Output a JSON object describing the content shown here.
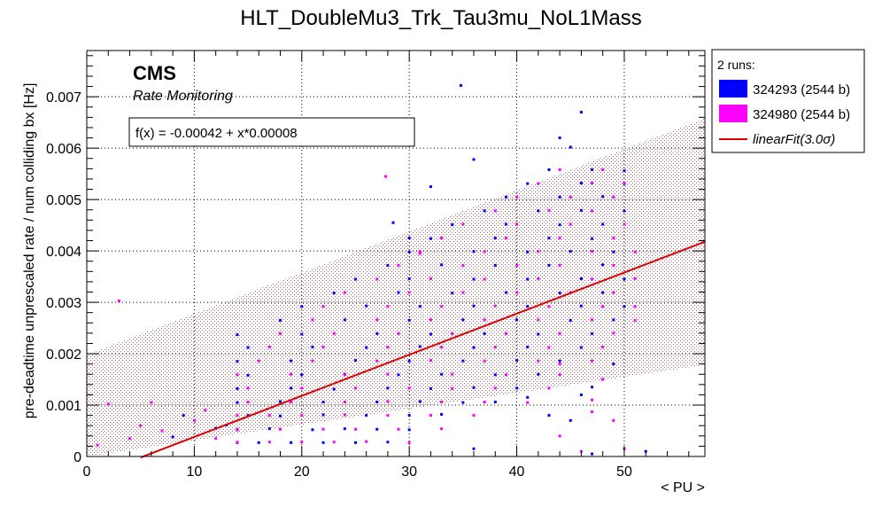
{
  "chart_data": {
    "type": "scatter",
    "title": "HLT_DoubleMu3_Trk_Tau3mu_NoL1Mass",
    "xlabel": "< PU >",
    "ylabel": "pre-deadtime unprescaled rate / num colliding bx [Hz]",
    "xlim": [
      0,
      57.5
    ],
    "ylim": [
      0,
      0.0079
    ],
    "xticks": [
      "0",
      "10",
      "20",
      "30",
      "40",
      "50"
    ],
    "yticks": [
      "0",
      "0.001",
      "0.002",
      "0.003",
      "0.004",
      "0.005",
      "0.006",
      "0.007"
    ],
    "grid": true,
    "brand": "CMS",
    "subtitle": "Rate Monitoring",
    "fit_label": "f(x) = -0.00042 + x*0.00008",
    "fit": {
      "intercept": -0.00042,
      "slope": 8e-05,
      "x_range": [
        5,
        57.5
      ],
      "band_halfwidth": 0.0024,
      "color": "#e00000"
    },
    "legend": {
      "header": "2 runs:",
      "position": "right",
      "entries": [
        {
          "label": "324293 (2544 b)",
          "color": "#0000ff"
        },
        {
          "label": "324980 (2544 b)",
          "color": "#ff00ff"
        },
        {
          "label": "linearFit(3.0σ)",
          "color": "#e00000"
        }
      ]
    },
    "series": [
      {
        "name": "324293 (2544 b)",
        "color": "#0000ff",
        "points": [
          [
            14,
            0.00027
          ],
          [
            16,
            0.00027
          ],
          [
            19,
            0.00027
          ],
          [
            22,
            0.00027
          ],
          [
            25,
            0.00027
          ],
          [
            28,
            0.00028
          ],
          [
            14,
            0.00052
          ],
          [
            17,
            0.00054
          ],
          [
            21,
            0.00052
          ],
          [
            24,
            0.00054
          ],
          [
            27,
            0.00053
          ],
          [
            30,
            0.00052
          ],
          [
            15,
            0.0008
          ],
          [
            18,
            0.00079
          ],
          [
            22,
            0.00081
          ],
          [
            26,
            0.0008
          ],
          [
            30,
            0.0008
          ],
          [
            33,
            0.00082
          ],
          [
            14,
            0.00105
          ],
          [
            18,
            0.00107
          ],
          [
            22,
            0.00106
          ],
          [
            27,
            0.00106
          ],
          [
            31,
            0.00107
          ],
          [
            35,
            0.00105
          ],
          [
            38,
            0.00106
          ],
          [
            14,
            0.00132
          ],
          [
            19,
            0.00133
          ],
          [
            23,
            0.00131
          ],
          [
            28,
            0.00133
          ],
          [
            32,
            0.00132
          ],
          [
            36,
            0.00134
          ],
          [
            40,
            0.00133
          ],
          [
            15,
            0.00158
          ],
          [
            20,
            0.00159
          ],
          [
            24,
            0.0016
          ],
          [
            29,
            0.00159
          ],
          [
            33,
            0.0016
          ],
          [
            38,
            0.00159
          ],
          [
            42,
            0.0016
          ],
          [
            14,
            0.00185
          ],
          [
            19,
            0.00186
          ],
          [
            25,
            0.00187
          ],
          [
            30,
            0.00186
          ],
          [
            35,
            0.00186
          ],
          [
            40,
            0.00187
          ],
          [
            44,
            0.00186
          ],
          [
            15,
            0.00212
          ],
          [
            21,
            0.00213
          ],
          [
            26,
            0.00212
          ],
          [
            31,
            0.00214
          ],
          [
            36,
            0.00212
          ],
          [
            41,
            0.00213
          ],
          [
            46,
            0.00212
          ],
          [
            14,
            0.00237
          ],
          [
            20,
            0.00238
          ],
          [
            27,
            0.00239
          ],
          [
            32,
            0.00238
          ],
          [
            37,
            0.00239
          ],
          [
            42,
            0.00238
          ],
          [
            47,
            0.00239
          ],
          [
            18,
            0.00265
          ],
          [
            24,
            0.00266
          ],
          [
            30,
            0.00265
          ],
          [
            35,
            0.00266
          ],
          [
            40,
            0.00266
          ],
          [
            45,
            0.00265
          ],
          [
            49,
            0.00266
          ],
          [
            20,
            0.00292
          ],
          [
            26,
            0.00293
          ],
          [
            31,
            0.00292
          ],
          [
            36,
            0.00293
          ],
          [
            41,
            0.00292
          ],
          [
            46,
            0.00293
          ],
          [
            50,
            0.00292
          ],
          [
            23,
            0.00318
          ],
          [
            29,
            0.00319
          ],
          [
            34,
            0.00318
          ],
          [
            39,
            0.00319
          ],
          [
            44,
            0.00318
          ],
          [
            48,
            0.00319
          ],
          [
            25,
            0.00345
          ],
          [
            30,
            0.00346
          ],
          [
            36,
            0.00345
          ],
          [
            41,
            0.00345
          ],
          [
            46,
            0.00346
          ],
          [
            50,
            0.00345
          ],
          [
            28,
            0.00372
          ],
          [
            33,
            0.00373
          ],
          [
            38,
            0.00372
          ],
          [
            43,
            0.00372
          ],
          [
            48,
            0.00373
          ],
          [
            30,
            0.00398
          ],
          [
            36,
            0.00399
          ],
          [
            41,
            0.00398
          ],
          [
            45,
            0.00399
          ],
          [
            49,
            0.00398
          ],
          [
            32,
            0.00424
          ],
          [
            38,
            0.00425
          ],
          [
            43,
            0.00425
          ],
          [
            47,
            0.00424
          ],
          [
            34,
            0.00451
          ],
          [
            39,
            0.00452
          ],
          [
            44,
            0.00451
          ],
          [
            48,
            0.00452
          ],
          [
            37,
            0.00478
          ],
          [
            42,
            0.00478
          ],
          [
            46,
            0.00479
          ],
          [
            50,
            0.00478
          ],
          [
            39,
            0.00505
          ],
          [
            44,
            0.00505
          ],
          [
            48,
            0.00506
          ],
          [
            41,
            0.00531
          ],
          [
            46,
            0.00532
          ],
          [
            50,
            0.00531
          ],
          [
            43,
            0.00558
          ],
          [
            47,
            0.00558
          ],
          [
            50,
            0.00556
          ],
          [
            36,
            0.00578
          ],
          [
            45,
            0.00602
          ],
          [
            44,
            0.0062
          ],
          [
            46,
            0.0067
          ],
          [
            34.8,
            0.00722
          ],
          [
            28.5,
            0.00455
          ],
          [
            30,
            0.00425
          ],
          [
            32,
            0.00525
          ],
          [
            8,
            0.00038
          ],
          [
            12,
            0.00055
          ],
          [
            13,
            0.00061
          ],
          [
            9,
            0.0008
          ],
          [
            41,
            0.00115
          ],
          [
            46,
            0.0012
          ],
          [
            48,
            0.0015
          ],
          [
            49,
            0.0018
          ],
          [
            52,
            0.0001
          ],
          [
            47,
            5e-05
          ],
          [
            36,
            0.00015
          ],
          [
            43,
            0.0008
          ],
          [
            45,
            0.0007
          ],
          [
            47,
            0.00135
          ]
        ]
      },
      {
        "name": "324980 (2544 b)",
        "color": "#ff00ff",
        "points": [
          [
            14,
            0.00028
          ],
          [
            17,
            0.00028
          ],
          [
            20,
            0.00028
          ],
          [
            23,
            0.00028
          ],
          [
            26,
            0.00029
          ],
          [
            30,
            0.00027
          ],
          [
            14,
            0.00053
          ],
          [
            18,
            0.00053
          ],
          [
            22,
            0.00053
          ],
          [
            25,
            0.00053
          ],
          [
            29,
            0.00053
          ],
          [
            33,
            0.00054
          ],
          [
            14,
            0.0008
          ],
          [
            17,
            0.0008
          ],
          [
            20,
            0.0008
          ],
          [
            24,
            0.00081
          ],
          [
            28,
            0.0008
          ],
          [
            32,
            0.0008
          ],
          [
            36,
            0.0008
          ],
          [
            15,
            0.00106
          ],
          [
            19,
            0.00106
          ],
          [
            24,
            0.00106
          ],
          [
            28,
            0.00107
          ],
          [
            33,
            0.00106
          ],
          [
            37,
            0.00106
          ],
          [
            41,
            0.00105
          ],
          [
            15,
            0.00133
          ],
          [
            20,
            0.00133
          ],
          [
            25,
            0.00133
          ],
          [
            30,
            0.00133
          ],
          [
            34,
            0.00132
          ],
          [
            38,
            0.00133
          ],
          [
            43,
            0.00133
          ],
          [
            14,
            0.00159
          ],
          [
            19,
            0.0016
          ],
          [
            24,
            0.00159
          ],
          [
            28,
            0.0016
          ],
          [
            34,
            0.0016
          ],
          [
            39,
            0.00159
          ],
          [
            44,
            0.00159
          ],
          [
            16,
            0.00186
          ],
          [
            21,
            0.00186
          ],
          [
            27,
            0.00186
          ],
          [
            32,
            0.00187
          ],
          [
            37,
            0.00186
          ],
          [
            42,
            0.00186
          ],
          [
            47,
            0.00186
          ],
          [
            17,
            0.00213
          ],
          [
            22,
            0.00213
          ],
          [
            28,
            0.00213
          ],
          [
            33,
            0.00213
          ],
          [
            38,
            0.00213
          ],
          [
            43,
            0.00212
          ],
          [
            48,
            0.00213
          ],
          [
            18,
            0.00239
          ],
          [
            23,
            0.00239
          ],
          [
            29,
            0.00239
          ],
          [
            34,
            0.00239
          ],
          [
            39,
            0.00239
          ],
          [
            44,
            0.00239
          ],
          [
            49,
            0.0024
          ],
          [
            21,
            0.00266
          ],
          [
            27,
            0.00266
          ],
          [
            32,
            0.00266
          ],
          [
            37,
            0.00266
          ],
          [
            42,
            0.00266
          ],
          [
            47,
            0.00266
          ],
          [
            51,
            0.00265
          ],
          [
            22,
            0.00292
          ],
          [
            28,
            0.00292
          ],
          [
            33,
            0.00292
          ],
          [
            38,
            0.00293
          ],
          [
            43,
            0.00292
          ],
          [
            48,
            0.00292
          ],
          [
            51,
            0.00292
          ],
          [
            24,
            0.00319
          ],
          [
            30,
            0.00319
          ],
          [
            35,
            0.00319
          ],
          [
            40,
            0.00319
          ],
          [
            45,
            0.00319
          ],
          [
            49,
            0.00319
          ],
          [
            27,
            0.00345
          ],
          [
            32,
            0.00346
          ],
          [
            37,
            0.00345
          ],
          [
            42,
            0.00346
          ],
          [
            47,
            0.00345
          ],
          [
            51,
            0.00346
          ],
          [
            29,
            0.00372
          ],
          [
            35,
            0.00372
          ],
          [
            40,
            0.00372
          ],
          [
            44,
            0.00372
          ],
          [
            49,
            0.00372
          ],
          [
            31,
            0.00399
          ],
          [
            37,
            0.00399
          ],
          [
            42,
            0.00399
          ],
          [
            47,
            0.00399
          ],
          [
            51,
            0.00398
          ],
          [
            33,
            0.00425
          ],
          [
            39,
            0.00425
          ],
          [
            44,
            0.00425
          ],
          [
            49,
            0.00425
          ],
          [
            35,
            0.00452
          ],
          [
            40,
            0.00452
          ],
          [
            45,
            0.00452
          ],
          [
            50,
            0.00452
          ],
          [
            38,
            0.00478
          ],
          [
            43,
            0.00479
          ],
          [
            47,
            0.00478
          ],
          [
            40,
            0.00505
          ],
          [
            45,
            0.00505
          ],
          [
            49,
            0.00505
          ],
          [
            42,
            0.00531
          ],
          [
            47,
            0.00532
          ],
          [
            50,
            0.00532
          ],
          [
            44,
            0.00558
          ],
          [
            48,
            0.00558
          ],
          [
            27.8,
            0.00545
          ],
          [
            3,
            0.00303
          ],
          [
            2,
            0.00102
          ],
          [
            46,
            0.0001
          ],
          [
            44,
            0.0004
          ],
          [
            31,
            0.00395
          ],
          [
            5,
            0.0006
          ],
          [
            10,
            0.0007
          ],
          [
            11,
            0.0009
          ],
          [
            7,
            0.0005
          ],
          [
            6,
            0.00105
          ],
          [
            47,
            0.00087
          ],
          [
            44,
            0.0018
          ],
          [
            48,
            0.0015
          ],
          [
            1,
            0.00022
          ],
          [
            4,
            0.00035
          ],
          [
            12,
            0.00035
          ],
          [
            47,
            0.0011
          ],
          [
            49,
            0.0007
          ],
          [
            50,
            0.00015
          ]
        ]
      }
    ]
  }
}
